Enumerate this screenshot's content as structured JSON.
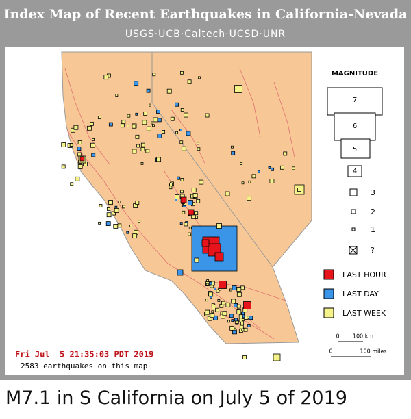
{
  "header": {
    "title": "Index Map of Recent Earthquakes in California-Nevada",
    "subtitle": "USGS·UCB·Caltech·UCSD·UNR"
  },
  "legend": {
    "title": "MAGNITUDE",
    "magnitudes": [
      "7",
      "6",
      "5",
      "4",
      "3",
      "2",
      "1",
      "?"
    ],
    "periods": [
      "LAST HOUR",
      "LAST DAY",
      "LAST WEEK"
    ]
  },
  "scale": {
    "km": [
      "0",
      "100 km"
    ],
    "miles": [
      "0",
      "100 miles"
    ]
  },
  "footer": {
    "timestamp": "Fri Jul  5 21:35:03 PDT 2019",
    "count": "2583 earthquakes on this map"
  },
  "caption": "M7.1 in S California on July 5 of 2019"
}
